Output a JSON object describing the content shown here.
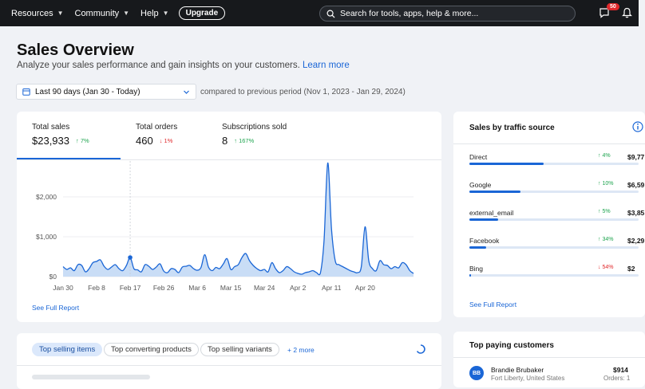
{
  "topbar": {
    "nav": [
      "Resources",
      "Community",
      "Help"
    ],
    "upgrade_label": "Upgrade",
    "search_placeholder": "Search for tools, apps, help & more...",
    "notifications_count": "50"
  },
  "header": {
    "title": "Sales Overview",
    "subtitle": "Analyze your sales performance and gain insights on your customers.",
    "learn_more": "Learn more",
    "date_range": "Last 90 days (Jan 30 - Today)",
    "comparison": "compared to previous period (Nov 1, 2023 - Jan 29, 2024)"
  },
  "stats": {
    "tabs": [
      {
        "label": "Total sales",
        "value": "$23,933",
        "change": "7%",
        "direction": "up"
      },
      {
        "label": "Total orders",
        "value": "460",
        "change": "1%",
        "direction": "down"
      },
      {
        "label": "Subscriptions sold",
        "value": "8",
        "change": "167%",
        "direction": "up"
      }
    ],
    "see_full_report": "See Full Report"
  },
  "chart_data": {
    "type": "area",
    "x_tick_labels": [
      "Jan 30",
      "Feb 8",
      "Feb 17",
      "Feb 26",
      "Mar 6",
      "Mar 15",
      "Mar 24",
      "Apr 2",
      "Apr 11",
      "Apr 20"
    ],
    "y_tick_labels": [
      "$0",
      "$1,000",
      "$2,000"
    ],
    "ylim": [
      0,
      2900
    ],
    "grid": true,
    "color": "#1a66d6",
    "fill": "#c9ddf6",
    "marker_day": 18,
    "values": [
      250,
      180,
      220,
      150,
      300,
      280,
      120,
      200,
      350,
      380,
      420,
      260,
      180,
      240,
      300,
      200,
      150,
      280,
      480,
      200,
      170,
      120,
      300,
      260,
      180,
      240,
      320,
      140,
      100,
      200,
      180,
      100,
      240,
      260,
      280,
      200,
      160,
      230,
      550,
      240,
      150,
      230,
      200,
      320,
      450,
      180,
      250,
      300,
      480,
      580,
      400,
      280,
      200,
      150,
      180,
      120,
      350,
      200,
      100,
      150,
      250,
      200,
      120,
      80,
      60,
      100,
      120,
      150,
      100,
      80,
      900,
      2850,
      1200,
      400,
      300,
      250,
      200,
      150,
      120,
      100,
      250,
      1250,
      400,
      200,
      150,
      400,
      300,
      280,
      200,
      250,
      220,
      350,
      300,
      150,
      80
    ]
  },
  "traffic": {
    "title": "Sales by traffic source",
    "rows": [
      {
        "name": "Direct",
        "change": "4%",
        "direction": "up",
        "value": "$9,77",
        "share": 0.44
      },
      {
        "name": "Google",
        "change": "10%",
        "direction": "up",
        "value": "$6,59",
        "share": 0.3
      },
      {
        "name": "external_email",
        "change": "5%",
        "direction": "up",
        "value": "$3,85",
        "share": 0.17
      },
      {
        "name": "Facebook",
        "change": "34%",
        "direction": "up",
        "value": "$2,29",
        "share": 0.1
      },
      {
        "name": "Bing",
        "change": "54%",
        "direction": "down",
        "value": "$2",
        "share": 0.01
      }
    ],
    "see_full_report": "See Full Report"
  },
  "top_selling": {
    "pills": [
      "Top selling items",
      "Top converting products",
      "Top selling variants"
    ],
    "more": "+ 2 more"
  },
  "customers": {
    "title": "Top paying customers",
    "rows": [
      {
        "initials": "BB",
        "name": "Brandie Brubaker",
        "location": "Fort Liberty, United States",
        "amount": "$914",
        "orders": "Orders: 1"
      }
    ]
  },
  "colors": {
    "accent": "#1a66d6",
    "up": "#1ea44f",
    "down": "#e0282b",
    "topbar": "#17191c"
  }
}
